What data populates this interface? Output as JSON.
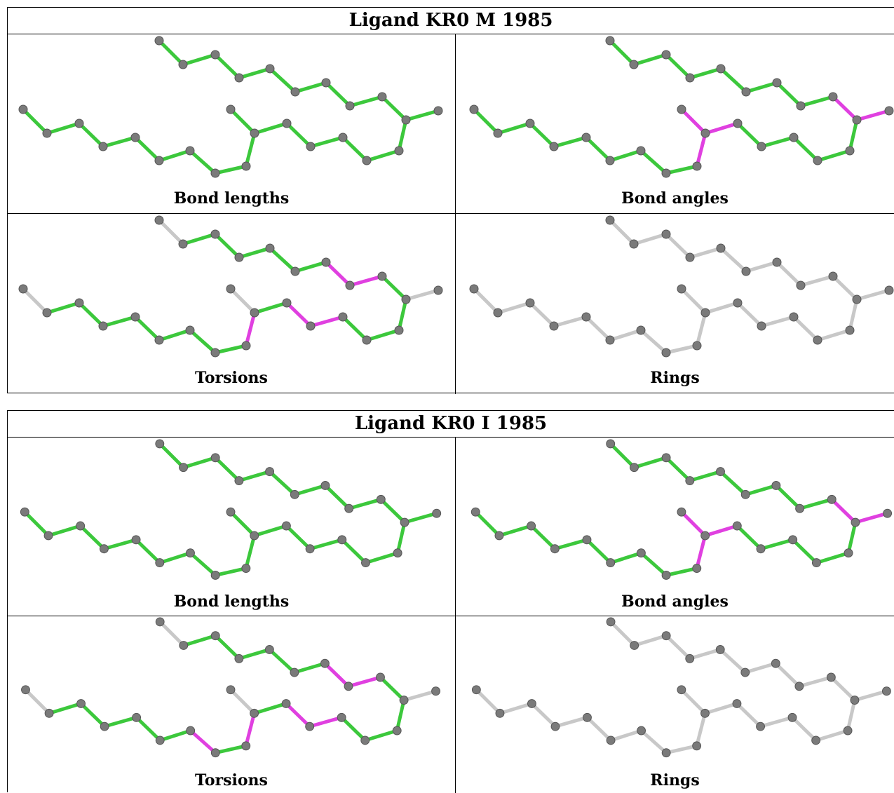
{
  "colors": {
    "ok": "#3cc83c",
    "bad": "#e040e0",
    "none": "#c8c8c8",
    "atom": "#7a7a7a"
  },
  "panels": [
    {
      "title": "Ligand KR0 M 1985",
      "cells": [
        {
          "caption": "Bond lengths",
          "highlight": []
        },
        {
          "caption": "Bond angles",
          "highlight": [
            [
              14,
              15
            ],
            [
              15,
              16
            ],
            [
              15,
              24
            ],
            [
              15,
              23
            ],
            [
              23,
              24
            ],
            [
              24,
              25
            ],
            [
              24,
              26
            ],
            [
              26,
              27
            ]
          ]
        },
        {
          "caption": "Torsions",
          "highlight": [
            [
              15,
              24
            ],
            [
              16,
              17
            ],
            [
              17,
              18
            ],
            [
              20,
              21
            ],
            [
              21,
              22
            ],
            [
              22,
              23
            ]
          ],
          "gray": [
            [
              0,
              1
            ],
            [
              8,
              9
            ],
            [
              14,
              15
            ],
            [
              27,
              28
            ]
          ]
        },
        {
          "caption": "Rings",
          "gray_all": true
        }
      ]
    },
    {
      "title": "Ligand KR0 I 1985",
      "cells": [
        {
          "caption": "Bond lengths",
          "highlight": []
        },
        {
          "caption": "Bond angles",
          "highlight": [
            [
              14,
              15
            ],
            [
              15,
              16
            ],
            [
              15,
              24
            ],
            [
              15,
              23
            ],
            [
              23,
              24
            ],
            [
              24,
              25
            ],
            [
              24,
              26
            ],
            [
              26,
              27
            ]
          ]
        },
        {
          "caption": "Torsions",
          "highlight": [
            [
              6,
              7
            ],
            [
              15,
              24
            ],
            [
              16,
              17
            ],
            [
              17,
              18
            ],
            [
              20,
              21
            ],
            [
              21,
              22
            ],
            [
              22,
              23
            ]
          ],
          "gray": [
            [
              0,
              1
            ],
            [
              8,
              9
            ],
            [
              14,
              15
            ],
            [
              27,
              28
            ]
          ]
        },
        {
          "caption": "Rings",
          "gray_all": true
        }
      ]
    }
  ]
}
